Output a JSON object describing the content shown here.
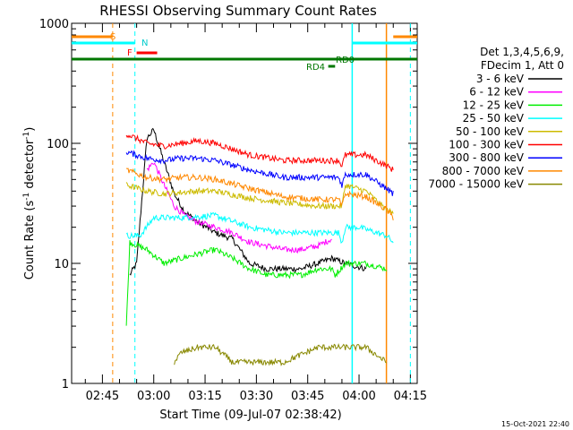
{
  "chart_data": {
    "type": "line",
    "title": "RHESSI Observing Summary Count Rates",
    "xlabel": "Start Time (09-Jul-07 02:38:42)",
    "ylabel_main": "Count Rate (s",
    "ylabel_sup1": "-1",
    "ylabel_mid": " detector",
    "ylabel_sup2": "-1",
    "ylabel_end": ")",
    "yscale": "log",
    "ylim": [
      1,
      1000
    ],
    "xlim_minutes": [
      -2,
      99
    ],
    "x_tick_labels": [
      "02:45",
      "03:00",
      "03:15",
      "03:30",
      "03:45",
      "04:00",
      "04:15"
    ],
    "x_tick_minutes": [
      7,
      22,
      37,
      52,
      67,
      82,
      97
    ],
    "y_tick_labels": [
      "1",
      "10",
      "100",
      "1000"
    ],
    "y_tick_values": [
      1,
      10,
      100,
      1000
    ],
    "legend_header": [
      "Det 1,3,4,5,6,9,",
      "FDecim 1, Att 0"
    ],
    "legend_placement": "right",
    "timestamp": "15-Oct-2021 22:40",
    "series": [
      {
        "name": "3 - 6 keV",
        "color": "#000000",
        "points": [
          [
            15,
            8
          ],
          [
            17,
            10
          ],
          [
            20,
            110
          ],
          [
            22,
            130
          ],
          [
            25,
            70
          ],
          [
            28,
            38
          ],
          [
            31,
            27
          ],
          [
            35,
            22
          ],
          [
            40,
            18
          ],
          [
            45,
            16
          ],
          [
            50,
            10
          ],
          [
            55,
            9
          ],
          [
            60,
            9
          ],
          [
            65,
            9
          ],
          [
            70,
            10
          ],
          [
            74,
            11
          ],
          [
            78,
            10
          ],
          [
            84,
            9
          ]
        ]
      },
      {
        "name": "6 - 12 keV",
        "color": "#ff00ff",
        "points": [
          [
            20,
            60
          ],
          [
            22,
            70
          ],
          [
            25,
            45
          ],
          [
            28,
            30
          ],
          [
            31,
            25
          ],
          [
            35,
            22
          ],
          [
            40,
            20
          ],
          [
            45,
            18
          ],
          [
            50,
            15
          ],
          [
            55,
            14
          ],
          [
            60,
            13
          ],
          [
            65,
            13
          ],
          [
            70,
            14
          ],
          [
            74,
            16
          ]
        ]
      },
      {
        "name": "12 - 25 keV",
        "color": "#00ee00",
        "points": [
          [
            14,
            3
          ],
          [
            15,
            15
          ],
          [
            20,
            13
          ],
          [
            25,
            10
          ],
          [
            30,
            11
          ],
          [
            35,
            12
          ],
          [
            40,
            13
          ],
          [
            45,
            11
          ],
          [
            50,
            9
          ],
          [
            55,
            8
          ],
          [
            60,
            8
          ],
          [
            65,
            8
          ],
          [
            70,
            9
          ],
          [
            74,
            9
          ],
          [
            75,
            8
          ],
          [
            78,
            10
          ],
          [
            84,
            10
          ],
          [
            90,
            9
          ]
        ]
      },
      {
        "name": "25 - 50 keV",
        "color": "#00ffff",
        "points": [
          [
            14,
            17
          ],
          [
            18,
            17
          ],
          [
            22,
            24
          ],
          [
            30,
            24
          ],
          [
            40,
            25
          ],
          [
            50,
            20
          ],
          [
            60,
            18
          ],
          [
            70,
            18
          ],
          [
            76,
            18
          ],
          [
            77,
            15
          ],
          [
            78,
            20
          ],
          [
            82,
            20
          ],
          [
            90,
            17
          ],
          [
            92,
            15
          ]
        ]
      },
      {
        "name": "50 - 100 keV",
        "color": "#ccbb00",
        "points": [
          [
            14,
            45
          ],
          [
            20,
            40
          ],
          [
            25,
            38
          ],
          [
            30,
            39
          ],
          [
            35,
            40
          ],
          [
            40,
            40
          ],
          [
            50,
            35
          ],
          [
            60,
            32
          ],
          [
            70,
            30
          ],
          [
            76,
            30
          ],
          [
            77,
            30
          ],
          [
            78,
            45
          ],
          [
            84,
            40
          ],
          [
            90,
            28
          ],
          [
            92,
            26
          ]
        ]
      },
      {
        "name": "100 - 300 keV",
        "color": "#ff0000",
        "points": [
          [
            14,
            120
          ],
          [
            20,
            100
          ],
          [
            25,
            95
          ],
          [
            30,
            100
          ],
          [
            35,
            105
          ],
          [
            40,
            100
          ],
          [
            50,
            80
          ],
          [
            60,
            72
          ],
          [
            70,
            72
          ],
          [
            76,
            72
          ],
          [
            77,
            65
          ],
          [
            78,
            80
          ],
          [
            84,
            80
          ],
          [
            90,
            65
          ],
          [
            92,
            60
          ]
        ]
      },
      {
        "name": "300 - 800 keV",
        "color": "#0000ff",
        "points": [
          [
            14,
            85
          ],
          [
            20,
            75
          ],
          [
            25,
            72
          ],
          [
            30,
            75
          ],
          [
            35,
            75
          ],
          [
            40,
            72
          ],
          [
            50,
            60
          ],
          [
            60,
            52
          ],
          [
            70,
            52
          ],
          [
            76,
            52
          ],
          [
            77,
            45
          ],
          [
            78,
            55
          ],
          [
            84,
            55
          ],
          [
            90,
            42
          ],
          [
            92,
            38
          ]
        ]
      },
      {
        "name": "800 - 7000 keV",
        "color": "#ff8800",
        "points": [
          [
            14,
            60
          ],
          [
            20,
            52
          ],
          [
            25,
            50
          ],
          [
            30,
            52
          ],
          [
            35,
            52
          ],
          [
            40,
            50
          ],
          [
            50,
            42
          ],
          [
            60,
            36
          ],
          [
            70,
            34
          ],
          [
            76,
            34
          ],
          [
            77,
            30
          ],
          [
            78,
            38
          ],
          [
            84,
            36
          ],
          [
            90,
            28
          ],
          [
            92,
            24
          ]
        ]
      },
      {
        "name": "7000 - 15000 keV",
        "color": "#888800",
        "points": [
          [
            28,
            1.5
          ],
          [
            30,
            1.8
          ],
          [
            35,
            2
          ],
          [
            40,
            2
          ],
          [
            45,
            1.5
          ],
          [
            60,
            1.5
          ],
          [
            70,
            2
          ],
          [
            78,
            2
          ],
          [
            84,
            2
          ],
          [
            90,
            1.5
          ]
        ]
      }
    ],
    "flag_labels": {
      "s": "S",
      "n": "N",
      "f": "F",
      "rd4": "RD4",
      "rd0": "RD0"
    }
  }
}
